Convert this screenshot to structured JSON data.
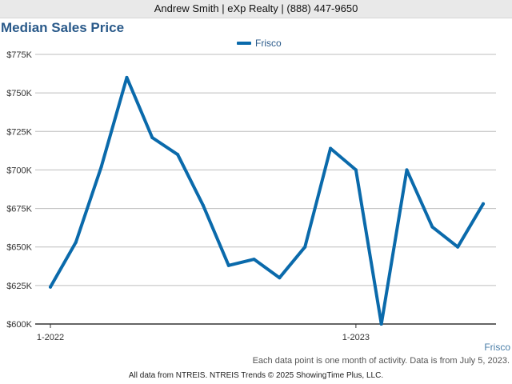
{
  "header": {
    "agent_line": "Andrew Smith | eXp Realty | (888) 447-9650"
  },
  "chart_data": {
    "type": "line",
    "title": "Median Sales Price",
    "xlabel": "",
    "ylabel": "",
    "x": [
      "1-2022",
      "2-2022",
      "3-2022",
      "4-2022",
      "5-2022",
      "6-2022",
      "7-2022",
      "8-2022",
      "9-2022",
      "10-2022",
      "11-2022",
      "12-2022",
      "1-2023",
      "2-2023",
      "3-2023",
      "4-2023",
      "5-2023",
      "6-2023"
    ],
    "x_tick_labels": [
      "1-2022",
      "1-2023"
    ],
    "y_ticks": [
      600000,
      625000,
      650000,
      675000,
      700000,
      725000,
      750000,
      775000
    ],
    "y_tick_labels": [
      "$600K",
      "$625K",
      "$650K",
      "$675K",
      "$700K",
      "$725K",
      "$750K",
      "$775K"
    ],
    "ylim": [
      600000,
      775000
    ],
    "grid": true,
    "legend_position": "top-center",
    "series": [
      {
        "name": "Frisco",
        "color": "#0a6aab",
        "values": [
          624000,
          653000,
          702000,
          760000,
          721000,
          710000,
          677000,
          638000,
          642000,
          630000,
          650000,
          714000,
          700000,
          600000,
          700000,
          663000,
          650000,
          678000
        ]
      }
    ]
  },
  "footer": {
    "area_label": "Frisco",
    "note": "Each data point is one month of activity. Data is from July 5, 2023.",
    "source": "All data from NTREIS. NTREIS Trends © 2025 ShowingTime Plus, LLC."
  }
}
